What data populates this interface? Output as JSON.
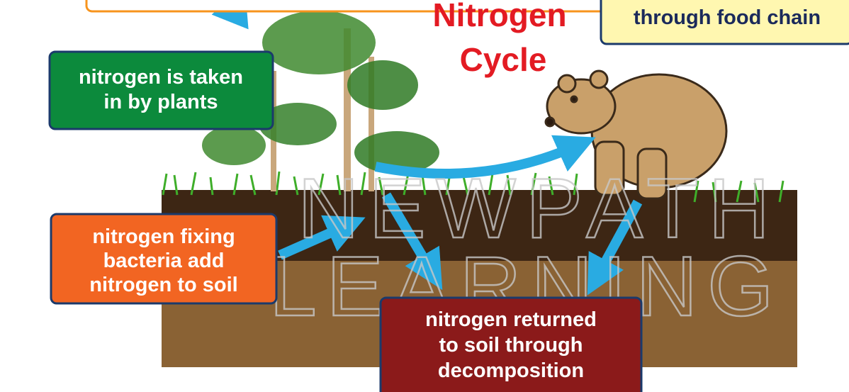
{
  "title": [
    "Nitrogen",
    "Cycle"
  ],
  "boxes": [
    {
      "lines": [
        "nitrogen is taken",
        "in by plants"
      ]
    },
    {
      "lines": [
        "nitrogen fixing",
        "bacteria add",
        "nitrogen to soil"
      ]
    },
    {
      "lines": [
        "nitrogen returned",
        "to soil through",
        "decomposition"
      ]
    },
    {
      "lines": [
        "through food chain"
      ]
    }
  ],
  "watermark": [
    "NEWPATH",
    "LEARNING"
  ]
}
